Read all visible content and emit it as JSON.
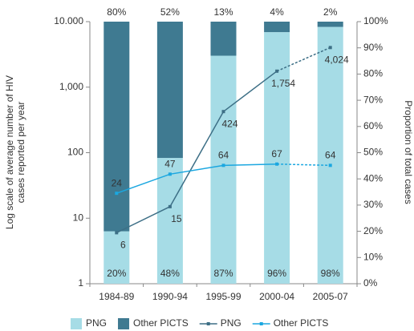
{
  "chart_data": {
    "type": "bar_line",
    "categories": [
      "1984-89",
      "1990-94",
      "1995-99",
      "2000-04",
      "2005-07"
    ],
    "y_label": "Log scale of average number of HIV cases reported per year",
    "y2_label": "Proportion of total cases",
    "ylog": true,
    "ylim": [
      1,
      10000
    ],
    "yticks": [
      1,
      10,
      100,
      {
        "value": 1000,
        "label": "1,000"
      },
      {
        "value": 10000,
        "label": "10.000"
      }
    ],
    "y2lim": [
      0,
      100
    ],
    "y2ticks": [
      {
        "value": 0,
        "label": "0%"
      },
      {
        "value": 10,
        "label": "10%"
      },
      {
        "value": 20,
        "label": "20%"
      },
      {
        "value": 30,
        "label": "30%"
      },
      {
        "value": 40,
        "label": "40%"
      },
      {
        "value": 50,
        "label": "50%"
      },
      {
        "value": 60,
        "label": "60%"
      },
      {
        "value": 70,
        "label": "70%"
      },
      {
        "value": 80,
        "label": "80%"
      },
      {
        "value": 90,
        "label": "90%"
      },
      {
        "value": 100,
        "label": "100%"
      }
    ],
    "series": [
      {
        "name": "PNG",
        "kind": "bar",
        "axis": "y2",
        "color": "#a6dce6",
        "values": [
          20,
          48,
          87,
          96,
          98
        ],
        "value_labels": [
          "20%",
          "48%",
          "87%",
          "96%",
          "98%"
        ]
      },
      {
        "name": "Other PICTS",
        "kind": "bar",
        "axis": "y2",
        "color": "#3f7a91",
        "values": [
          80,
          52,
          13,
          4,
          2
        ],
        "value_labels": [
          "80%",
          "52%",
          "13%",
          "4%",
          "2%"
        ]
      },
      {
        "name": "PNG",
        "kind": "line",
        "color": "#3d6f86",
        "dash_last_segment": true,
        "values": [
          6,
          15,
          424,
          1754,
          4024
        ],
        "value_labels": [
          "6",
          "15",
          "424",
          "1,754",
          "4,024"
        ]
      },
      {
        "name": "Other PICTS",
        "kind": "line",
        "color": "#1ba7e0",
        "dash_last_segment": true,
        "values": [
          24,
          47,
          64,
          67,
          64
        ]
      }
    ]
  }
}
